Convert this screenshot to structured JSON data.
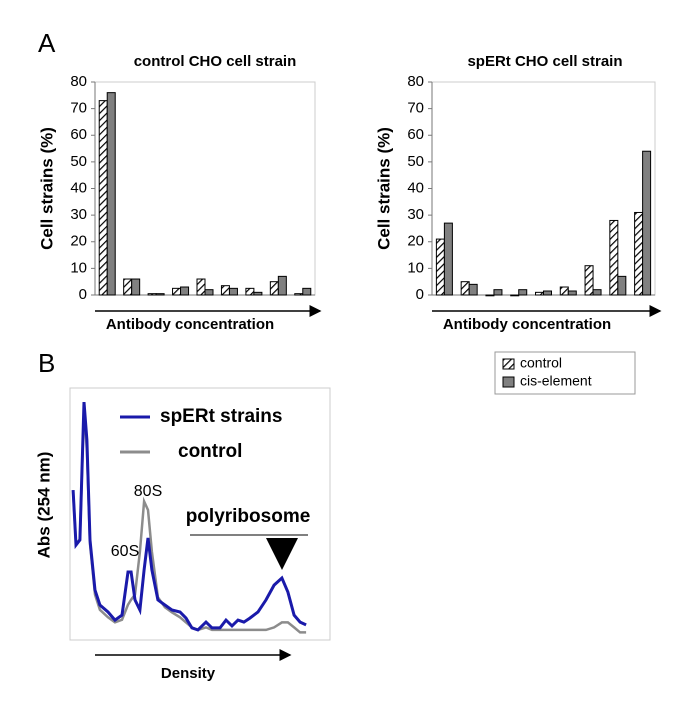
{
  "chart_data": [
    {
      "type": "bar",
      "panel_label": "A",
      "title": "control CHO cell strain",
      "y_label": "Cell strains (%)",
      "x_label": "Antibody concentration",
      "categories": [
        null,
        null,
        null,
        null,
        null,
        null,
        null,
        null,
        null
      ],
      "series": [
        {
          "color": "#ffffff",
          "hatch": true,
          "values": [
            73,
            6,
            0.5,
            2.5,
            6,
            3.5,
            2.5,
            5,
            0.5
          ]
        },
        {
          "color": "#808080",
          "hatch": false,
          "values": [
            76,
            6,
            0.5,
            3,
            2,
            2.5,
            1,
            7,
            2.5
          ]
        }
      ],
      "ylim": [
        0,
        80
      ],
      "yticks": [
        0,
        10,
        20,
        30,
        40,
        50,
        60,
        70,
        80
      ]
    },
    {
      "type": "bar",
      "title": "spERt CHO cell strain",
      "y_label": "Cell strains (%)",
      "x_label": "Antibody concentration",
      "categories": [
        null,
        null,
        null,
        null,
        null,
        null,
        null,
        null,
        null
      ],
      "series": [
        {
          "name": "control",
          "color": "#ffffff",
          "hatch": true,
          "values": [
            21,
            5,
            0,
            0,
            1,
            3,
            11,
            28,
            31
          ]
        },
        {
          "name": "cis-element",
          "color": "#808080",
          "hatch": false,
          "values": [
            27,
            4,
            2,
            2,
            1.5,
            1.5,
            2,
            7,
            54
          ]
        }
      ],
      "ylim": [
        0,
        80
      ],
      "yticks": [
        0,
        10,
        20,
        30,
        40,
        50,
        60,
        70,
        80
      ],
      "legend": "below-right"
    },
    {
      "type": "line",
      "panel_label": "B",
      "y_label": "Abs (254 nm)",
      "x_label": "Density",
      "annotations": [
        "60S",
        "80S",
        "polyribosome"
      ],
      "x": [
        1.2,
        2.3,
        3.8,
        5.4,
        6.5,
        7.7,
        9.6,
        11.5,
        14.6,
        17.3,
        20,
        22.3,
        23.5,
        25,
        26.9,
        28.5,
        30,
        31.5,
        33.8,
        36.5,
        39.2,
        42.3,
        44.6,
        46.9,
        49.2,
        52.3,
        54.6,
        57.7,
        60,
        62.3,
        64.6,
        66.9,
        69.2,
        72.3,
        75.4,
        78.5,
        81.5,
        83.8,
        86.2,
        88.5,
        90.8
      ],
      "series": [
        {
          "name": "spERt strains",
          "color": "#1a1aaa",
          "values": [
            59.5,
            37.7,
            39.7,
            94.4,
            79.4,
            39.7,
            19.8,
            13.9,
            11.1,
            7.9,
            9.9,
            27,
            27,
            15.9,
            11.9,
            27.8,
            40.5,
            27.8,
            15.9,
            13.9,
            11.9,
            11.1,
            8.7,
            4.8,
            4,
            7.1,
            4.8,
            4.8,
            7.9,
            5.6,
            7.9,
            7.1,
            8.7,
            11.1,
            15.9,
            21.8,
            24.6,
            19,
            9.9,
            7.1,
            6
          ]
        },
        {
          "name": "control",
          "color": "#8c8c8c",
          "values": [
            59,
            38,
            40,
            92,
            75,
            38,
            18,
            12,
            9,
            7,
            8,
            14,
            16,
            18,
            35,
            55,
            51.6,
            35,
            17,
            13,
            11,
            9,
            7,
            5,
            4,
            5,
            4,
            4,
            4,
            4,
            4,
            4,
            4,
            4,
            4,
            5,
            7,
            7,
            5,
            3,
            3
          ]
        }
      ],
      "xlim": [
        0,
        100
      ],
      "ylim": [
        0,
        100
      ]
    }
  ]
}
